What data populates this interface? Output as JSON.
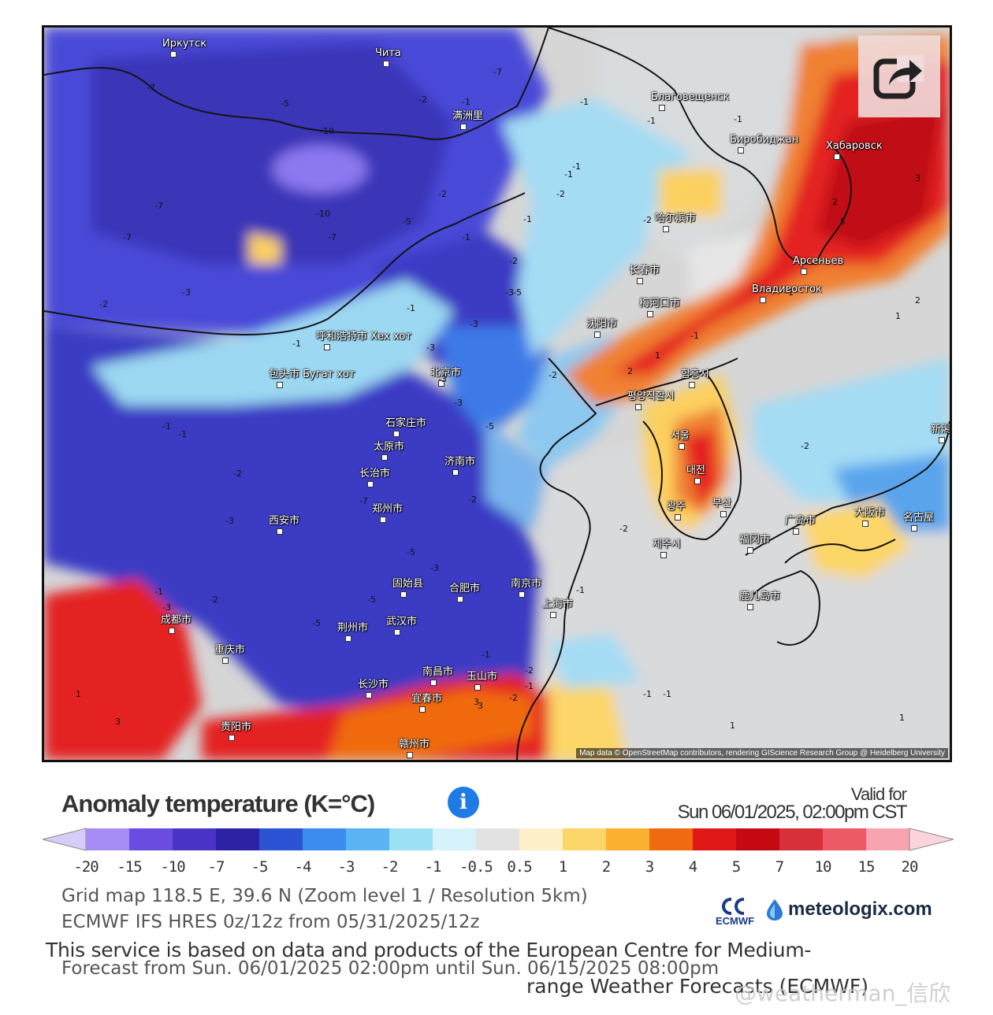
{
  "map": {
    "attribution": "Map data © OpenStreetMap contributors, rendering GIScience Research Group @ Heidelberg University",
    "cities": [
      {
        "name": "Иркутск"
      },
      {
        "name": "Чита"
      },
      {
        "name": "满洲里"
      },
      {
        "name": "Благовещенск"
      },
      {
        "name": "Биробиджан"
      },
      {
        "name": "Хабаровск"
      },
      {
        "name": "哈尔滨市"
      },
      {
        "name": "长春市"
      },
      {
        "name": "Арсеньев"
      },
      {
        "name": "Владивосток"
      },
      {
        "name": "梅河口市"
      },
      {
        "name": "沈阳市"
      },
      {
        "name": "呼和浩特市 Хех хот"
      },
      {
        "name": "包头市 Бугат хот"
      },
      {
        "name": "北京市"
      },
      {
        "name": "함흥시"
      },
      {
        "name": "평양직할시"
      },
      {
        "name": "石家庄市"
      },
      {
        "name": "太原市"
      },
      {
        "name": "济南市"
      },
      {
        "name": "서울"
      },
      {
        "name": "新潟"
      },
      {
        "name": "长治市"
      },
      {
        "name": "대전"
      },
      {
        "name": "郑州市"
      },
      {
        "name": "광주"
      },
      {
        "name": "부산"
      },
      {
        "name": "西安市"
      },
      {
        "name": "广岛市"
      },
      {
        "name": "大阪市"
      },
      {
        "name": "名古屋"
      },
      {
        "name": "福冈市"
      },
      {
        "name": "제주시"
      },
      {
        "name": "固始县"
      },
      {
        "name": "合肥市"
      },
      {
        "name": "南京市"
      },
      {
        "name": "上海市"
      },
      {
        "name": "鹿儿岛市"
      },
      {
        "name": "成都市"
      },
      {
        "name": "荆州市"
      },
      {
        "name": "武汉市"
      },
      {
        "name": "重庆市"
      },
      {
        "name": "南昌市"
      },
      {
        "name": "玉山市"
      },
      {
        "name": "长沙市"
      },
      {
        "name": "宜春市"
      },
      {
        "name": "贵阳市"
      },
      {
        "name": "赣州市"
      }
    ],
    "contour_labels": [
      "-7",
      "-5",
      "-10",
      "-7",
      "-2",
      "-1",
      "-3",
      "-2",
      "-1",
      "-7",
      "-5",
      "-10",
      "-7",
      "-5",
      "-3",
      "-2",
      "-1",
      "-1",
      "-2",
      "-3",
      "-5",
      "-7",
      "-2",
      "-1",
      "-1",
      "-3",
      "-2",
      "-1",
      "-1",
      "-2",
      "-1",
      "-3",
      "-5",
      "-1",
      "-2",
      "-5",
      "-3",
      "-1",
      "-7",
      "-3",
      "-2",
      "-1",
      "-5",
      "-2",
      "-1",
      "-3",
      "-2",
      "-1",
      "1",
      "2",
      "-1",
      "3",
      "2",
      "-1",
      "1",
      "3",
      "5",
      "3",
      "2",
      "1",
      "-1",
      "-2",
      "-3",
      "-2",
      "-1",
      "-1",
      "1",
      "3",
      "-1",
      "1",
      "-2",
      "1"
    ]
  },
  "share_button": {
    "icon": "share-icon"
  },
  "legend": {
    "title": "Anomaly temperature (K=°C)",
    "info_icon": "i",
    "valid_label": "Valid for",
    "valid_date": "Sun 06/01/2025, 02:00pm CST",
    "ticks": [
      "-20",
      "-15",
      "-10",
      "-7",
      "-5",
      "-4",
      "-3",
      "-2",
      "-1",
      "-0.5",
      "0.5",
      "1",
      "2",
      "3",
      "4",
      "5",
      "7",
      "10",
      "15",
      "20"
    ],
    "colors": [
      "#a58cf4",
      "#6a4de0",
      "#4a34c8",
      "#2e22a4",
      "#2a54d4",
      "#3c8cf0",
      "#5ab4f4",
      "#9ce0f6",
      "#d6f2fa",
      "#e2e2e2",
      "#fcf0c8",
      "#fcd668",
      "#fcb030",
      "#f06a10",
      "#e01818",
      "#c40a10",
      "#d8303a",
      "#ec5a66",
      "#f8a4b0"
    ],
    "end_low": "#d8ccf8",
    "end_high": "#fcd4dc"
  },
  "info": {
    "grid_line": "Grid map 118.5 E, 39.6 N (Zoom level 1 / Resolution 5km)",
    "model_line": "ECMWF IFS HRES 0z/12z from 05/31/2025/12z",
    "forecast_line": "Forecast from Sun. 06/01/2025 02:00pm until Sun. 06/15/2025 08:00pm"
  },
  "logos": {
    "ecmwf": "ECMWF",
    "brand": "meteologix.com"
  },
  "disclaimer": {
    "line1": "This service is based on data and products of the European Centre for Medium-",
    "line2": "range Weather Forecasts (ECMWF)"
  },
  "watermark": "@weatherman_信欣"
}
